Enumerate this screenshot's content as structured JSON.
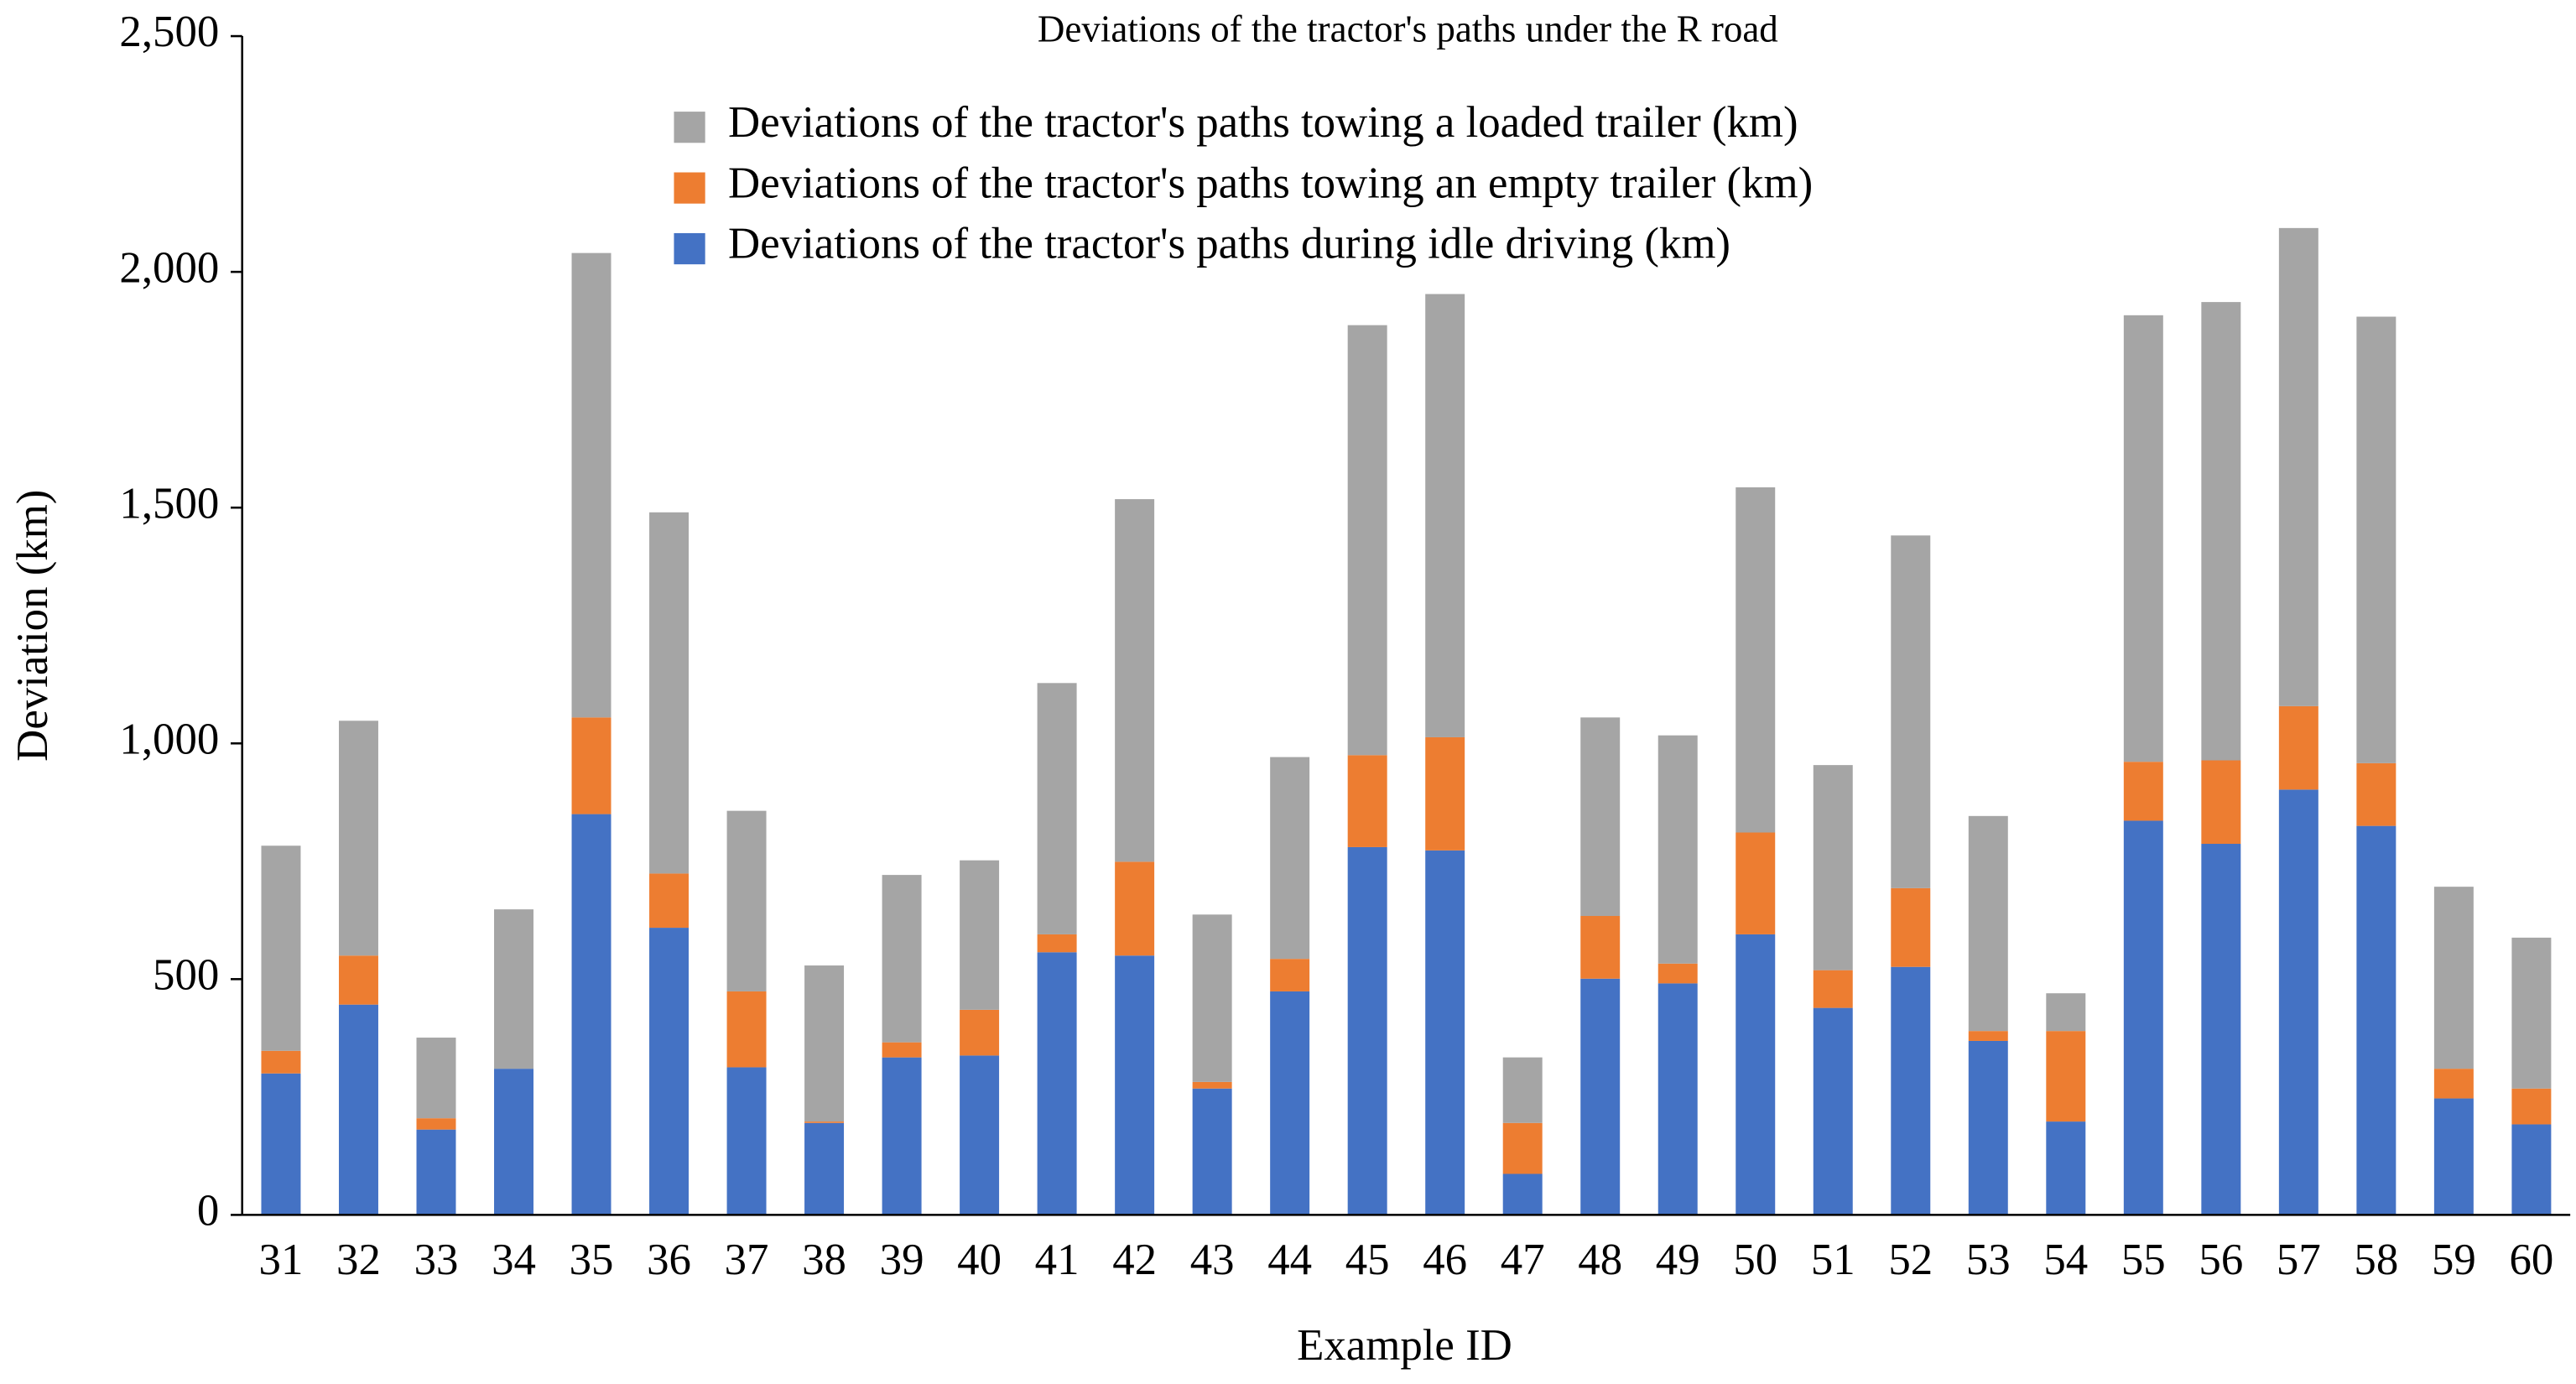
{
  "chart_data": {
    "type": "stacked_bar",
    "title": "Deviations of the tractor's paths under the R road",
    "x_label": "Example ID",
    "y_label": "Deviation (km)",
    "categories": [
      "31",
      "32",
      "33",
      "34",
      "35",
      "36",
      "37",
      "38",
      "39",
      "40",
      "41",
      "42",
      "43",
      "44",
      "45",
      "46",
      "47",
      "48",
      "49",
      "50",
      "51",
      "52",
      "53",
      "54",
      "55",
      "56",
      "57",
      "58",
      "59",
      "60"
    ],
    "series": [
      {
        "name": "Deviations of the tractor's paths during idle driving (km)",
        "color": "#4472c4",
        "values": [
          300,
          446,
          181,
          310,
          850,
          609,
          313,
          195,
          334,
          338,
          557,
          550,
          268,
          474,
          780,
          773,
          87,
          501,
          491,
          595,
          439,
          526,
          369,
          198,
          836,
          787,
          902,
          825,
          247,
          192
        ]
      },
      {
        "name": "Deviations of the tractor's paths towing an empty trailer (km)",
        "color": "#ed7d31",
        "values": [
          48,
          104,
          24,
          0,
          205,
          115,
          161,
          3,
          32,
          97,
          38,
          199,
          14,
          69,
          195,
          240,
          108,
          133,
          42,
          216,
          80,
          167,
          21,
          192,
          125,
          177,
          177,
          133,
          63,
          76
        ]
      },
      {
        "name": "Deviations of the tractor's paths towing a loaded trailer (km)",
        "color": "#a5a5a5",
        "values": [
          435,
          498,
          171,
          338,
          985,
          766,
          383,
          331,
          355,
          317,
          533,
          769,
          355,
          428,
          912,
          940,
          139,
          421,
          484,
          732,
          435,
          748,
          456,
          80,
          947,
          972,
          1014,
          947,
          386,
          320
        ]
      }
    ],
    "ylim": [
      0,
      2500
    ],
    "yticks": [
      0,
      500,
      {
        "value": 1000,
        "label": "1,000"
      },
      {
        "value": 1500,
        "label": "1,500"
      },
      {
        "value": 2000,
        "label": "2,000"
      },
      {
        "value": 2500,
        "label": "2,500"
      }
    ],
    "grid": false,
    "legend": "top"
  }
}
